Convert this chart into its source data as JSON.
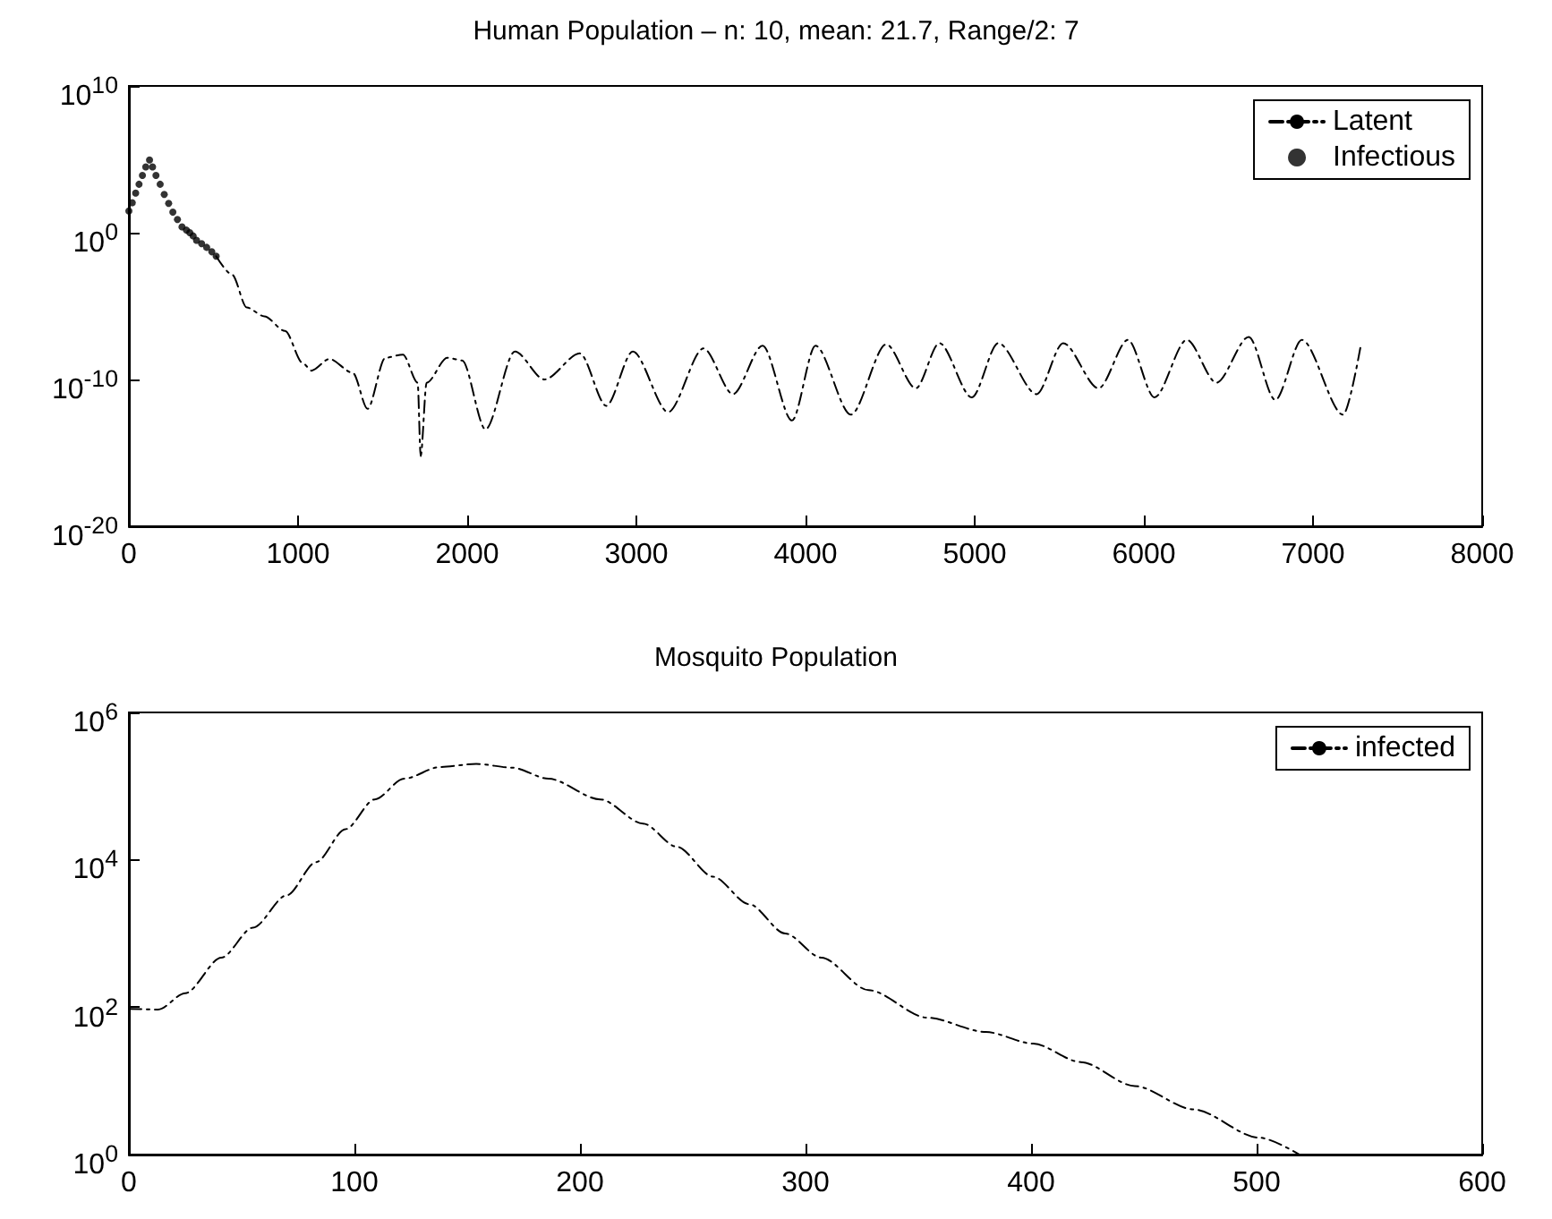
{
  "chart_data": [
    {
      "type": "line",
      "title": "Human Population – n: 10, mean: 21.7, Range/2: 7",
      "log": "y",
      "xlim": [
        0,
        8000
      ],
      "xticks": [
        0,
        1000,
        2000,
        3000,
        4000,
        5000,
        6000,
        7000,
        8000
      ],
      "ylim": [
        1e-20,
        10000000000.0
      ],
      "yticks": [
        {
          "value": 1e-20,
          "label": "10$^{-20}$"
        },
        {
          "value": 1e-10,
          "label": "10$^{-10}$"
        },
        {
          "value": 1,
          "label": "10$^{0}$"
        },
        {
          "value": 10000000000.0,
          "label": "10$^{10}$"
        }
      ],
      "grid": false,
      "legend": "top right",
      "series": [
        {
          "name": "Latent",
          "type": "line",
          "color": "#000000",
          "line_style": "dashdot",
          "marker": "none",
          "x": [
            516,
            610,
            697,
            801,
            923,
            1028,
            1080,
            1185,
            1324,
            1411,
            1516,
            1620,
            1707,
            1725,
            1760,
            1882,
            1970,
            2108,
            2282,
            2456,
            2666,
            2822,
            2979,
            3188,
            3397,
            3571,
            3746,
            3920,
            4059,
            4268,
            4477,
            4652,
            4791,
            4983,
            5139,
            5366,
            5523,
            5732,
            5906,
            6063,
            6254,
            6429,
            6620,
            6777,
            6934,
            7178,
            7282
          ],
          "values": [
            0.025,
            0.0014,
            8e-06,
            2e-06,
            2e-07,
            1.3e-09,
            4e-10,
            2.5e-09,
            2.8e-10,
            1e-12,
            3e-09,
            5e-09,
            6e-11,
            6e-16,
            6e-11,
            3e-09,
            2e-09,
            4e-14,
            8e-09,
            1e-10,
            6e-09,
            1.6e-12,
            8e-09,
            6e-13,
            1.3e-08,
            1e-11,
            2e-08,
            1.6e-13,
            2e-08,
            4e-13,
            2.5e-08,
            2.5e-11,
            3e-08,
            6e-12,
            3e-08,
            1e-11,
            3e-08,
            2.5e-11,
            5e-08,
            6e-12,
            5e-08,
            6e-11,
            8e-08,
            4e-12,
            5e-08,
            4e-13,
            2e-08
          ]
        },
        {
          "name": "Infectious",
          "type": "scatter",
          "color": "#000000",
          "marker": "circle",
          "x": [
            0,
            20,
            40,
            60,
            80,
            100,
            122,
            140,
            160,
            185,
            209,
            235,
            260,
            287,
            314,
            340,
            360,
            380,
            400,
            430,
            460,
            490,
            516
          ],
          "values": [
            30,
            110,
            500,
            2000,
            8000,
            30000,
            90000,
            30000,
            8000,
            2000,
            400,
            100,
            25,
            8,
            2.5,
            1.5,
            1,
            0.6,
            0.3,
            0.18,
            0.1,
            0.05,
            0.025
          ]
        }
      ]
    },
    {
      "type": "line",
      "title": "Mosquito Population",
      "log": "y",
      "xlim": [
        0,
        600
      ],
      "xticks": [
        0,
        100,
        200,
        300,
        400,
        500,
        600
      ],
      "ylim": [
        1,
        1000000
      ],
      "yticks": [
        {
          "value": 1,
          "label": "10$^{0}$"
        },
        {
          "value": 100,
          "label": "10$^{2}$"
        },
        {
          "value": 10000,
          "label": "10$^{4}$"
        },
        {
          "value": 1000000,
          "label": "10$^{6}$"
        }
      ],
      "grid": false,
      "legend": "top right",
      "series": [
        {
          "name": "infected",
          "type": "line",
          "color": "#000000",
          "line_style": "dashdot",
          "marker": "none",
          "x": [
            0,
            13,
            25,
            41,
            55,
            70,
            83,
            96,
            109,
            122,
            138,
            154,
            170,
            186,
            209,
            228,
            243,
            259,
            275,
            291,
            307,
            328,
            354,
            380,
            401,
            422,
            446,
            472,
            501,
            519
          ],
          "values": [
            95,
            93,
            155,
            470,
            1200,
            3300,
            9300,
            26000,
            66000,
            126000,
            182000,
            200000,
            178000,
            126000,
            66000,
            31000,
            15000,
            5900,
            2500,
            1000,
            470,
            170,
            72,
            46,
            32,
            18,
            8.5,
            4.1,
            1.7,
            1
          ]
        }
      ]
    }
  ]
}
